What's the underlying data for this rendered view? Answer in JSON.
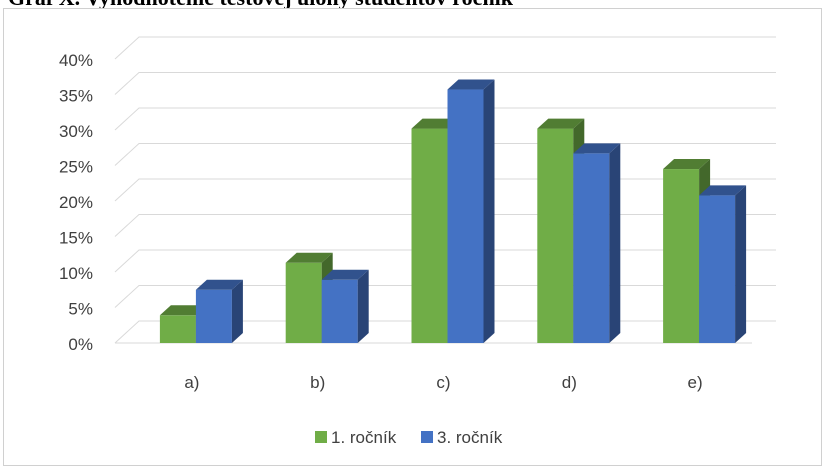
{
  "page_title_partial": "Graf X. Vyhodnotenie testovej úlohy študentov ročník",
  "chart_data": {
    "type": "bar",
    "style": "3d-clustered-column",
    "categories": [
      "a)",
      "b)",
      "c)",
      "d)",
      "e)"
    ],
    "series": [
      {
        "name": "1. ročník",
        "color": "#70ad47",
        "values": [
          3.9,
          11.3,
          30.2,
          30.2,
          24.5
        ]
      },
      {
        "name": "3. ročník",
        "color": "#4472c4",
        "values": [
          7.5,
          8.9,
          35.7,
          26.7,
          20.8
        ]
      }
    ],
    "y_ticks": [
      "0%",
      "5%",
      "10%",
      "15%",
      "20%",
      "25%",
      "30%",
      "35%",
      "40%"
    ],
    "ylim": [
      0,
      40
    ],
    "grid": true,
    "legend_position": "bottom"
  }
}
